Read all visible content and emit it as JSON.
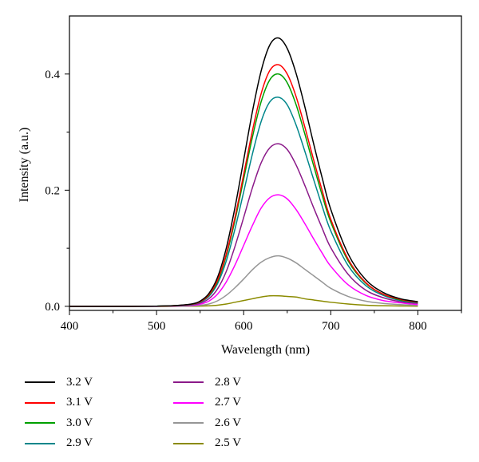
{
  "chart_data": {
    "type": "line",
    "title": "",
    "xlabel": "Wavelength (nm)",
    "ylabel": "Intensity (a.u.)",
    "xlim": [
      400,
      850
    ],
    "ylim": [
      -0.007,
      0.5
    ],
    "xticks": [
      400,
      500,
      600,
      700,
      800
    ],
    "yticks": [
      0.0,
      0.2,
      0.4
    ],
    "xtick_labels": [
      "400",
      "500",
      "600",
      "700",
      "800"
    ],
    "ytick_labels": [
      "0.0",
      "0.2",
      "0.4"
    ],
    "grid": false,
    "legend_position": "below",
    "x": [
      400,
      450,
      500,
      520,
      540,
      550,
      560,
      570,
      580,
      590,
      600,
      610,
      620,
      630,
      640,
      650,
      660,
      670,
      680,
      690,
      700,
      720,
      740,
      760,
      780,
      800
    ],
    "series": [
      {
        "name": "3.2 V",
        "color": "#000000",
        "values": [
          0,
          0,
          0.0003,
          0.0012,
          0.004,
          0.009,
          0.022,
          0.05,
          0.1,
          0.17,
          0.252,
          0.335,
          0.405,
          0.45,
          0.462,
          0.444,
          0.402,
          0.345,
          0.282,
          0.222,
          0.167,
          0.09,
          0.046,
          0.024,
          0.013,
          0.008
        ]
      },
      {
        "name": "3.1 V",
        "color": "#ff0000",
        "values": [
          0,
          0,
          0.0003,
          0.0011,
          0.0036,
          0.008,
          0.02,
          0.045,
          0.09,
          0.153,
          0.227,
          0.302,
          0.366,
          0.406,
          0.416,
          0.4,
          0.362,
          0.31,
          0.254,
          0.2,
          0.15,
          0.081,
          0.041,
          0.021,
          0.012,
          0.007
        ]
      },
      {
        "name": "3.0 V",
        "color": "#00a000",
        "values": [
          0,
          0,
          0.0003,
          0.001,
          0.0035,
          0.008,
          0.019,
          0.043,
          0.087,
          0.148,
          0.219,
          0.291,
          0.352,
          0.39,
          0.4,
          0.385,
          0.348,
          0.298,
          0.244,
          0.192,
          0.145,
          0.078,
          0.04,
          0.021,
          0.011,
          0.007
        ]
      },
      {
        "name": "2.9 V",
        "color": "#00868b",
        "values": [
          0,
          0,
          0.0003,
          0.0009,
          0.003,
          0.007,
          0.017,
          0.039,
          0.078,
          0.133,
          0.197,
          0.262,
          0.318,
          0.352,
          0.36,
          0.347,
          0.313,
          0.268,
          0.22,
          0.173,
          0.13,
          0.07,
          0.036,
          0.019,
          0.01,
          0.006
        ]
      },
      {
        "name": "2.8 V",
        "color": "#8b1a89",
        "values": [
          0,
          0,
          0.0002,
          0.0007,
          0.0024,
          0.0055,
          0.013,
          0.03,
          0.06,
          0.103,
          0.153,
          0.204,
          0.247,
          0.273,
          0.28,
          0.27,
          0.244,
          0.209,
          0.171,
          0.135,
          0.101,
          0.055,
          0.028,
          0.015,
          0.008,
          0.005
        ]
      },
      {
        "name": "2.7 V",
        "color": "#ff00ff",
        "values": [
          0,
          0,
          0.0001,
          0.0005,
          0.0016,
          0.0037,
          0.009,
          0.021,
          0.042,
          0.071,
          0.105,
          0.139,
          0.169,
          0.187,
          0.192,
          0.185,
          0.167,
          0.143,
          0.117,
          0.092,
          0.069,
          0.037,
          0.019,
          0.01,
          0.006,
          0.003
        ]
      },
      {
        "name": "2.6 V",
        "color": "#969696",
        "values": [
          0,
          0,
          0.0001,
          0.0002,
          0.0008,
          0.0017,
          0.004,
          0.0095,
          0.019,
          0.032,
          0.047,
          0.063,
          0.076,
          0.084,
          0.087,
          0.083,
          0.075,
          0.064,
          0.053,
          0.042,
          0.031,
          0.017,
          0.009,
          0.005,
          0.003,
          0.0015
        ]
      },
      {
        "name": "2.5 V",
        "color": "#8b8b00",
        "values": [
          0,
          0,
          0,
          0.0001,
          0.0002,
          0.0004,
          0.0009,
          0.002,
          0.004,
          0.007,
          0.01,
          0.013,
          0.016,
          0.018,
          0.018,
          0.017,
          0.016,
          0.013,
          0.011,
          0.009,
          0.007,
          0.004,
          0.002,
          0.001,
          0.0006,
          0.0003
        ]
      }
    ]
  }
}
